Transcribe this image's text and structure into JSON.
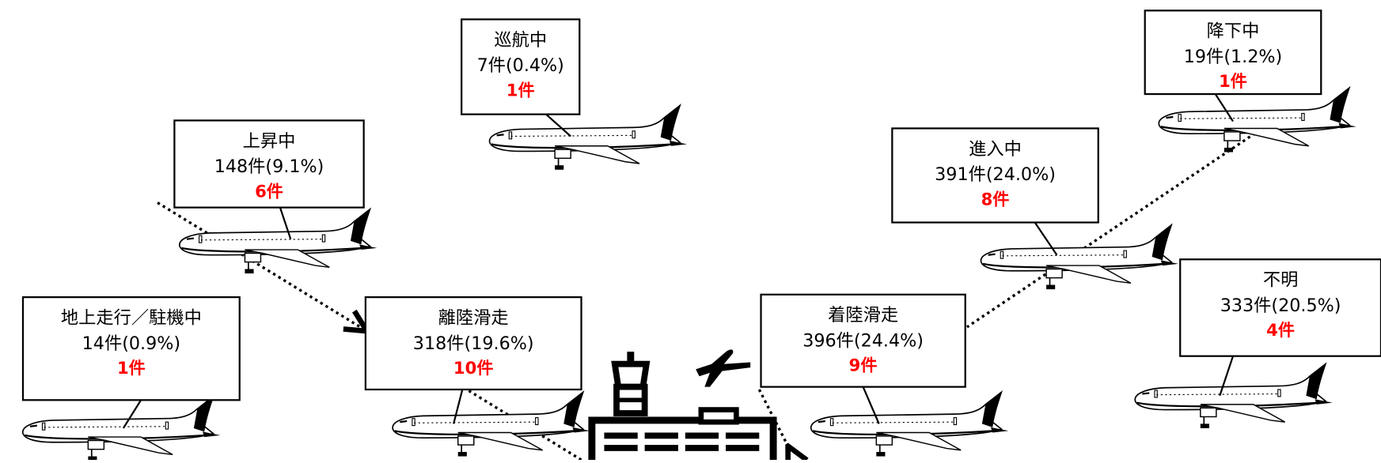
{
  "boxes": [
    {
      "phase": "巡航中",
      "total": "7件(0.4%)",
      "highlight": "1件"
    },
    {
      "phase": "降下中",
      "total": "19件(1.2%)",
      "highlight": "1件"
    },
    {
      "phase": "上昇中",
      "total": "148件(9.1%)",
      "highlight": "6件"
    },
    {
      "phase": "進入中",
      "total": "391件(24.0%)",
      "highlight": "8件"
    },
    {
      "phase": "不明",
      "total": "333件(20.5%)",
      "highlight": "4件"
    },
    {
      "phase": "地上走行／駐機中",
      "total": "14件(0.9%)",
      "highlight": "1件"
    },
    {
      "phase": "離陸滑走",
      "total": "318件(19.6%)",
      "highlight": "10件"
    },
    {
      "phase": "着陸滑走",
      "total": "396件(24.4%)",
      "highlight": "9件"
    }
  ]
}
